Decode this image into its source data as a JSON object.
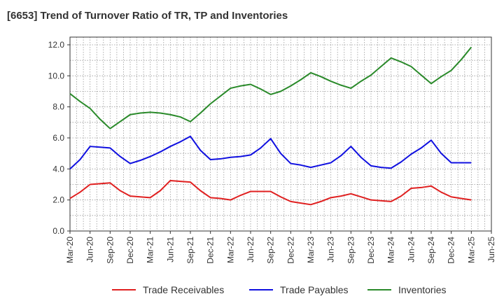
{
  "chart_data": {
    "type": "line",
    "title": "[6653]  Trend of Turnover Ratio of TR, TP and Inventories",
    "xlabel": "",
    "ylabel": "",
    "ylim": [
      0,
      12
    ],
    "y_ticks": [
      "0.0",
      "2.0",
      "4.0",
      "6.0",
      "8.0",
      "10.0",
      "12.0"
    ],
    "x_tick_labels": [
      "Mar-20",
      "Jun-20",
      "Sep-20",
      "Dec-20",
      "Mar-21",
      "Jun-21",
      "Sep-21",
      "Dec-21",
      "Mar-22",
      "Jun-22",
      "Sep-22",
      "Dec-22",
      "Mar-23",
      "Jun-23",
      "Sep-23",
      "Dec-23",
      "Mar-24",
      "Jun-24",
      "Sep-24",
      "Dec-24",
      "Mar-25",
      "Jun-25"
    ],
    "grid": true,
    "legend_position": "bottom",
    "series": [
      {
        "name": "Trade Receivables",
        "color": "#e02020",
        "values": [
          2.1,
          2.5,
          3.0,
          3.05,
          3.1,
          2.6,
          2.25,
          2.2,
          2.15,
          2.6,
          3.25,
          3.2,
          3.15,
          2.6,
          2.15,
          2.1,
          2.0,
          2.3,
          2.55,
          2.55,
          2.55,
          2.2,
          1.9,
          1.8,
          1.7,
          1.9,
          2.15,
          2.25,
          2.4,
          2.2,
          2.0,
          1.95,
          1.9,
          2.25,
          2.75,
          2.8,
          2.9,
          2.5,
          2.2,
          2.1,
          2.0
        ]
      },
      {
        "name": "Trade Payables",
        "color": "#1010e0",
        "values": [
          4.0,
          4.6,
          5.45,
          5.4,
          5.35,
          4.8,
          4.35,
          4.55,
          4.8,
          5.1,
          5.45,
          5.75,
          6.1,
          5.2,
          4.6,
          4.65,
          4.75,
          4.8,
          4.9,
          5.35,
          5.95,
          5.0,
          4.35,
          4.25,
          4.1,
          4.25,
          4.4,
          4.85,
          5.45,
          4.75,
          4.2,
          4.1,
          4.05,
          4.45,
          4.95,
          5.35,
          5.85,
          5.0,
          4.4,
          4.4,
          4.4
        ]
      },
      {
        "name": "Inventories",
        "color": "#2a8a2a",
        "values": [
          8.85,
          8.35,
          7.9,
          7.2,
          6.6,
          7.05,
          7.5,
          7.6,
          7.65,
          7.6,
          7.5,
          7.35,
          7.05,
          7.6,
          8.2,
          8.7,
          9.2,
          9.35,
          9.45,
          9.15,
          8.8,
          9.0,
          9.35,
          9.75,
          10.2,
          9.95,
          9.65,
          9.4,
          9.2,
          9.65,
          10.05,
          10.6,
          11.15,
          10.9,
          10.6,
          10.05,
          9.5,
          9.95,
          10.35,
          11.05,
          11.85
        ]
      }
    ]
  }
}
